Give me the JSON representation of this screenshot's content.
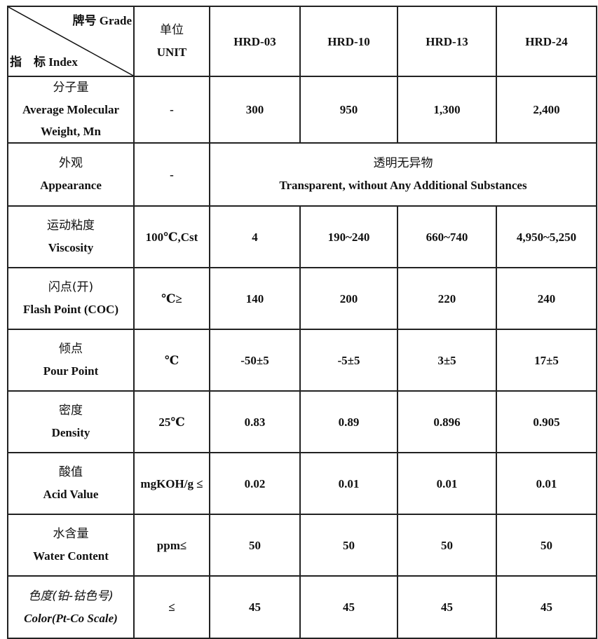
{
  "header": {
    "corner_grade": "牌号 Grade",
    "corner_index": "指　标 Index",
    "unit_cn": "单位",
    "unit_en": "UNIT",
    "grades": [
      "HRD-03",
      "HRD-10",
      "HRD-13",
      "HRD-24"
    ]
  },
  "rows": [
    {
      "cn": "分子量",
      "en": "Average Molecular Weight, Mn",
      "unit": "-",
      "values": [
        "300",
        "950",
        "1,300",
        "2,400"
      ]
    },
    {
      "cn": "外观",
      "en": "Appearance",
      "unit": "-",
      "merged_cn": "透明无异物",
      "merged_en": "Transparent, without Any Additional Substances"
    },
    {
      "cn": "运动粘度",
      "en": "Viscosity",
      "unit": "100℃,Cst",
      "values": [
        "4",
        "190~240",
        "660~740",
        "4,950~5,250"
      ]
    },
    {
      "cn": "闪点(开)",
      "en": "Flash Point (COC)",
      "unit": "℃≥",
      "values": [
        "140",
        "200",
        "220",
        "240"
      ]
    },
    {
      "cn": "倾点",
      "en": "Pour Point",
      "unit": "℃",
      "values": [
        "-50±5",
        "-5±5",
        "3±5",
        "17±5"
      ]
    },
    {
      "cn": "密度",
      "en": "Density",
      "unit": "25℃",
      "values": [
        "0.83",
        "0.89",
        "0.896",
        "0.905"
      ]
    },
    {
      "cn": "酸值",
      "en": "Acid Value",
      "unit": "mgKOH/g ≤",
      "values": [
        "0.02",
        "0.01",
        "0.01",
        "0.01"
      ]
    },
    {
      "cn": "水含量",
      "en": "Water Content",
      "unit": "ppm≤",
      "values": [
        "50",
        "50",
        "50",
        "50"
      ]
    },
    {
      "cn": "色度(铂-钴色号)",
      "en": "Color(Pt-Co Scale)",
      "unit": "≤",
      "values": [
        "45",
        "45",
        "45",
        "45"
      ],
      "italic": true
    }
  ]
}
